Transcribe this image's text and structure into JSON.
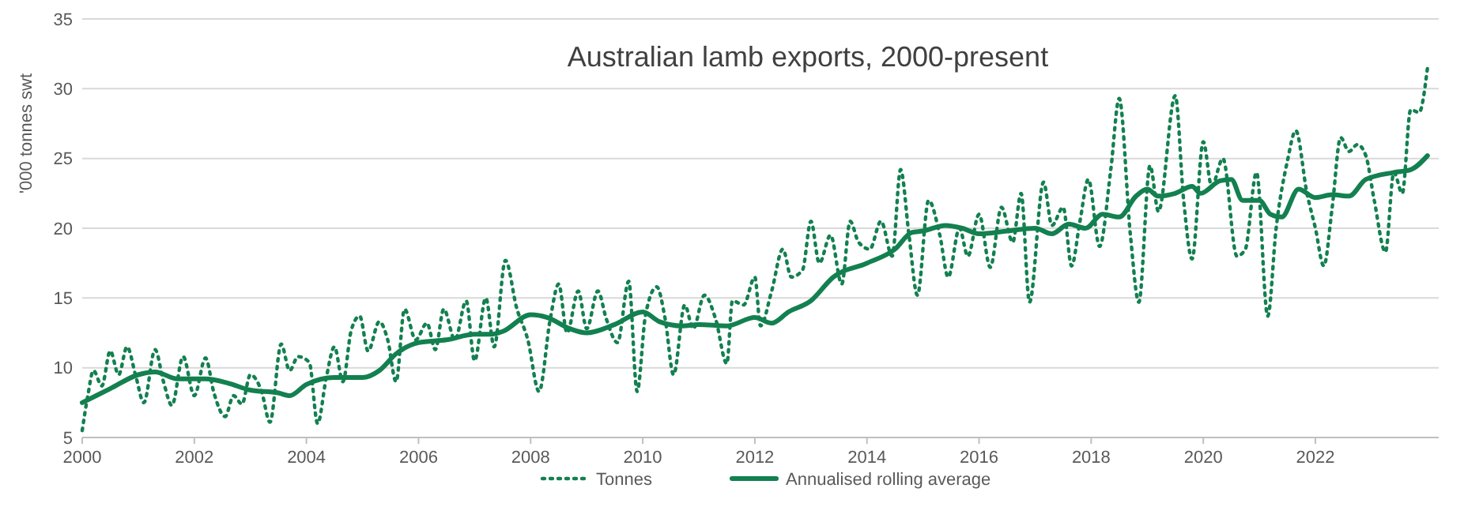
{
  "chart_data": {
    "type": "line",
    "title": "Australian lamb exports, 2000-present",
    "ylabel": "'000 tonnes swt",
    "xlim": [
      2000,
      2024.2
    ],
    "xticks": [
      2000,
      2002,
      2004,
      2006,
      2008,
      2010,
      2012,
      2014,
      2016,
      2018,
      2020,
      2022
    ],
    "ylim": [
      5,
      35
    ],
    "yticks": [
      5,
      10,
      15,
      20,
      25,
      30,
      35
    ],
    "grid": "y",
    "legend": "bottom",
    "series": [
      {
        "name": "Tonnes",
        "color": "#138050",
        "line_style": "dotted",
        "x": [
          2000.0,
          2000.1,
          2000.2,
          2000.35,
          2000.5,
          2000.65,
          2000.8,
          2000.95,
          2001.1,
          2001.3,
          2001.45,
          2001.6,
          2001.8,
          2002.0,
          2002.2,
          2002.35,
          2002.55,
          2002.7,
          2002.85,
          2003.0,
          2003.2,
          2003.35,
          2003.55,
          2003.7,
          2003.85,
          2004.05,
          2004.2,
          2004.35,
          2004.5,
          2004.65,
          2004.8,
          2004.95,
          2005.1,
          2005.3,
          2005.45,
          2005.6,
          2005.75,
          2005.95,
          2006.15,
          2006.3,
          2006.45,
          2006.65,
          2006.85,
          2007.0,
          2007.2,
          2007.35,
          2007.55,
          2007.75,
          2007.95,
          2008.15,
          2008.35,
          2008.5,
          2008.65,
          2008.85,
          2009.0,
          2009.2,
          2009.35,
          2009.55,
          2009.75,
          2009.9,
          2010.05,
          2010.25,
          2010.4,
          2010.55,
          2010.75,
          2010.9,
          2011.1,
          2011.3,
          2011.5,
          2011.6,
          2011.8,
          2012.0,
          2012.1,
          2012.3,
          2012.5,
          2012.65,
          2012.85,
          2013.0,
          2013.15,
          2013.35,
          2013.55,
          2013.7,
          2013.85,
          2014.05,
          2014.25,
          2014.45,
          2014.6,
          2014.75,
          2014.9,
          2015.1,
          2015.3,
          2015.45,
          2015.65,
          2015.8,
          2016.0,
          2016.2,
          2016.4,
          2016.6,
          2016.75,
          2016.9,
          2017.15,
          2017.3,
          2017.5,
          2017.65,
          2017.8,
          2017.95,
          2018.15,
          2018.35,
          2018.5,
          2018.7,
          2018.85,
          2019.05,
          2019.2,
          2019.5,
          2019.65,
          2019.8,
          2020.0,
          2020.15,
          2020.35,
          2020.6,
          2020.75,
          2020.95,
          2021.15,
          2021.3,
          2021.5,
          2021.65,
          2021.85,
          2022.0,
          2022.15,
          2022.3,
          2022.45,
          2022.6,
          2022.75,
          2022.9,
          2023.05,
          2023.25,
          2023.4,
          2023.55,
          2023.7,
          2023.85,
          2024.0
        ],
        "values": [
          5.5,
          8,
          9.8,
          8.7,
          11.2,
          9.5,
          11.5,
          9.5,
          7.5,
          11.3,
          9,
          7.3,
          10.8,
          8,
          10.7,
          8.2,
          6.5,
          8,
          7.4,
          9.5,
          8.3,
          6.1,
          11.7,
          9.8,
          10.8,
          10.4,
          6.0,
          9.2,
          11.5,
          9,
          12.7,
          13.7,
          11.2,
          13.3,
          12,
          9,
          14.2,
          12,
          13.2,
          11.3,
          14.2,
          12,
          14.8,
          10.5,
          15,
          11.5,
          17.7,
          14.3,
          12,
          8.3,
          13.5,
          16,
          12.5,
          15.5,
          12.8,
          15.5,
          13.5,
          11.8,
          16.2,
          8.3,
          13.8,
          15.8,
          13.5,
          9.5,
          14.5,
          12.8,
          15.2,
          13.5,
          10.3,
          14.8,
          14.5,
          16.5,
          13,
          15.5,
          18.5,
          16.5,
          17,
          20.5,
          17.5,
          19.5,
          16,
          20.5,
          19,
          18.5,
          20.5,
          18,
          24.2,
          19.5,
          15.2,
          22,
          19.5,
          16.5,
          20,
          18,
          21,
          17.2,
          21.5,
          19,
          22.5,
          14.7,
          23.3,
          20.2,
          21.5,
          17.3,
          20.5,
          23.5,
          18.7,
          24.2,
          29.3,
          19.5,
          14.7,
          24.5,
          21.2,
          29.5,
          22,
          17.8,
          26.2,
          23,
          25,
          18,
          18.5,
          24,
          13.7,
          20,
          24.8,
          27,
          22.5,
          20,
          17.3,
          21.5,
          26.5,
          25.5,
          26,
          25.2,
          22,
          18.3,
          24,
          22.5,
          28.5,
          28.3,
          31.5
        ]
      },
      {
        "name": "Annualised rolling average",
        "color": "#138050",
        "line_style": "solid",
        "x": [
          2000,
          2000.5,
          2001,
          2001.3,
          2001.7,
          2002.2,
          2002.6,
          2003,
          2003.5,
          2003.7,
          2004,
          2004.5,
          2005,
          2005.3,
          2005.6,
          2006,
          2006.5,
          2007,
          2007.3,
          2007.5,
          2008,
          2008.3,
          2008.7,
          2009,
          2009.5,
          2010,
          2010.3,
          2010.7,
          2011,
          2011.5,
          2012,
          2012.3,
          2012.6,
          2013,
          2013.4,
          2014,
          2014.5,
          2014.8,
          2015,
          2015.4,
          2015.7,
          2016,
          2016.5,
          2017,
          2017.3,
          2017.6,
          2017.9,
          2018.2,
          2018.5,
          2018.8,
          2019,
          2019.2,
          2019.5,
          2019.8,
          2019.95,
          2020.3,
          2020.5,
          2020.7,
          2021,
          2021.2,
          2021.4,
          2021.7,
          2022,
          2022.3,
          2022.6,
          2022.9,
          2023.4,
          2023.7,
          2024.0
        ],
        "values": [
          7.5,
          8.5,
          9.5,
          9.7,
          9.2,
          9.2,
          8.9,
          8.4,
          8.2,
          8.0,
          8.8,
          9.3,
          9.3,
          9.8,
          11,
          11.8,
          12,
          12.4,
          12.4,
          12.6,
          13.8,
          13.6,
          12.8,
          12.5,
          13.1,
          14,
          13.3,
          13,
          13.1,
          13,
          13.6,
          13.2,
          14,
          14.8,
          16.5,
          17.5,
          18.5,
          19.7,
          19.8,
          20.2,
          20,
          19.6,
          19.8,
          20,
          19.6,
          20.3,
          20,
          21,
          20.8,
          22.3,
          22.8,
          22.3,
          22.5,
          23,
          22.5,
          23.4,
          23.5,
          22,
          22,
          21,
          20.8,
          22.8,
          22.2,
          22.4,
          22.3,
          23.5,
          24,
          24.2,
          25.2
        ]
      }
    ]
  }
}
